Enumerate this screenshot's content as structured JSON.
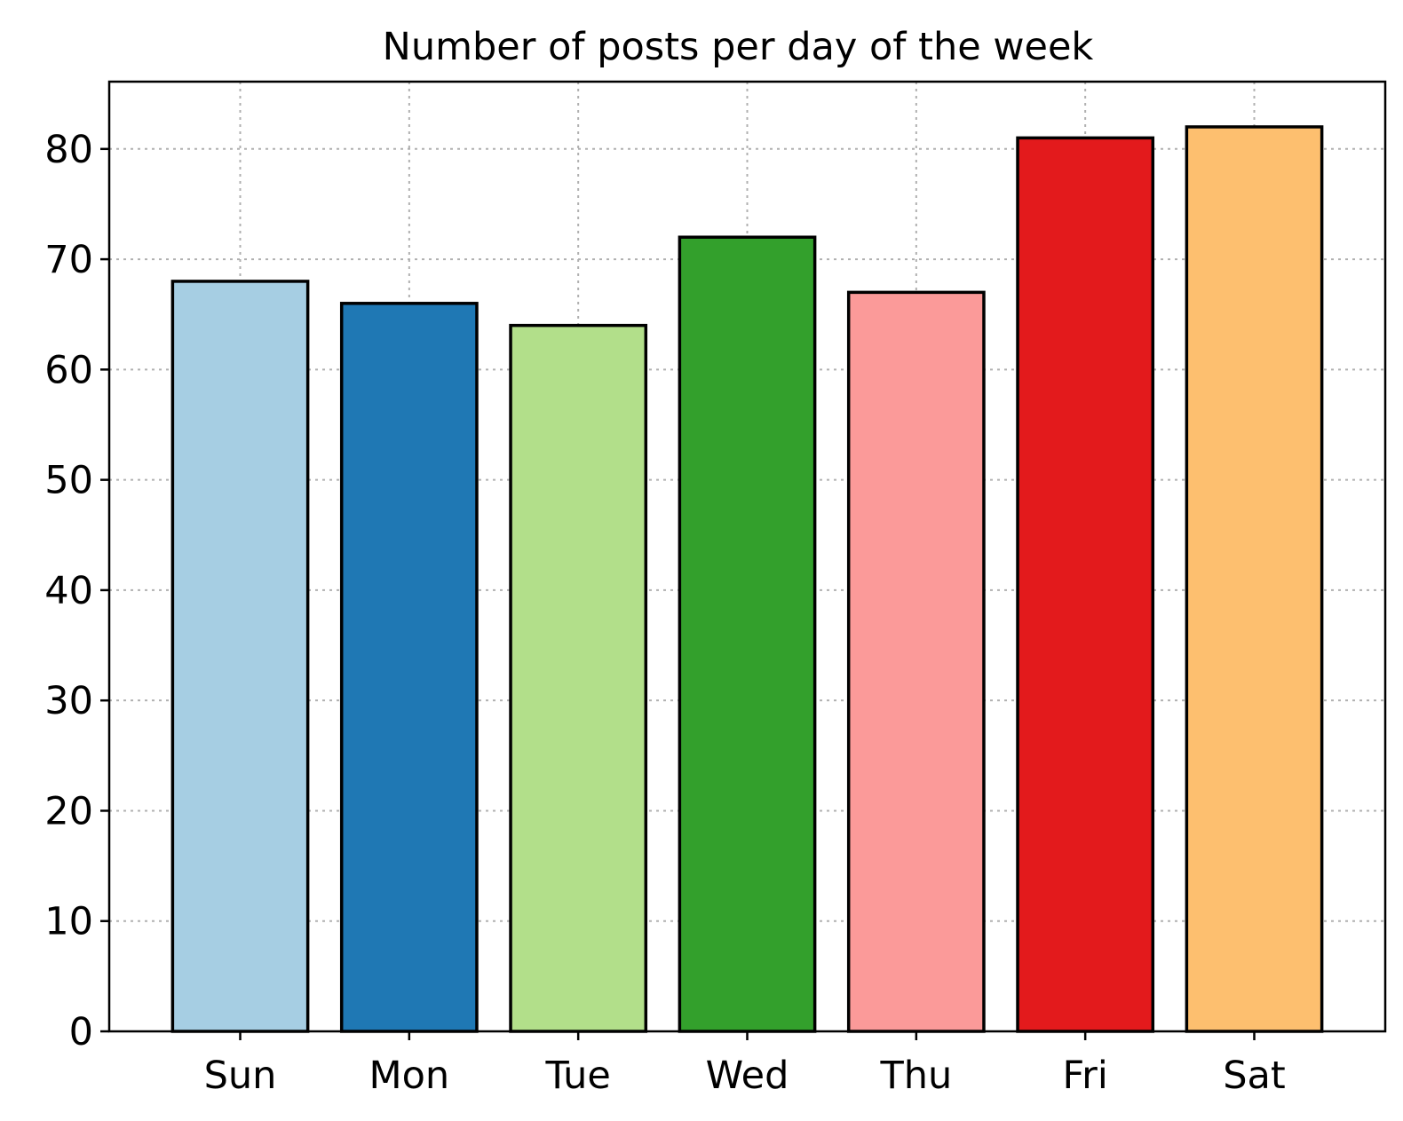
{
  "chart_data": {
    "type": "bar",
    "title": "Number of posts per day of the week",
    "xlabel": "",
    "ylabel": "",
    "categories": [
      "Sun",
      "Mon",
      "Tue",
      "Wed",
      "Thu",
      "Fri",
      "Sat"
    ],
    "values": [
      68,
      66,
      64,
      72,
      67,
      81,
      82
    ],
    "colors": [
      "#a6cee3",
      "#1f78b4",
      "#b2df8a",
      "#33a02c",
      "#fb9a99",
      "#e31a1c",
      "#fdbf6f"
    ],
    "edge_color": "#000000",
    "ylim": [
      0,
      86.1
    ],
    "yticks": [
      0,
      10,
      20,
      30,
      40,
      50,
      60,
      70,
      80
    ],
    "grid": true,
    "grid_style": "dotted",
    "legend": "none"
  }
}
